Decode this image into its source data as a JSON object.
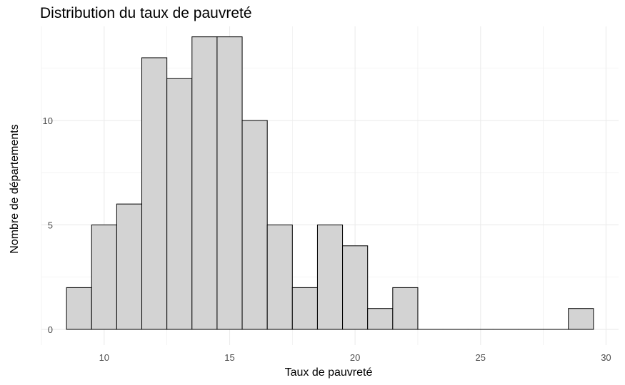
{
  "chart_data": {
    "type": "bar",
    "title": "Distribution du taux de pauvreté",
    "xlabel": "Taux de pauvreté",
    "ylabel": "Nombre de départements",
    "bin_width": 1,
    "bins": [
      {
        "start": 8.5,
        "end": 9.5,
        "count": 2
      },
      {
        "start": 9.5,
        "end": 10.5,
        "count": 5
      },
      {
        "start": 10.5,
        "end": 11.5,
        "count": 6
      },
      {
        "start": 11.5,
        "end": 12.5,
        "count": 13
      },
      {
        "start": 12.5,
        "end": 13.5,
        "count": 12
      },
      {
        "start": 13.5,
        "end": 14.5,
        "count": 14
      },
      {
        "start": 14.5,
        "end": 15.5,
        "count": 14
      },
      {
        "start": 15.5,
        "end": 16.5,
        "count": 10
      },
      {
        "start": 16.5,
        "end": 17.5,
        "count": 5
      },
      {
        "start": 17.5,
        "end": 18.5,
        "count": 2
      },
      {
        "start": 18.5,
        "end": 19.5,
        "count": 5
      },
      {
        "start": 19.5,
        "end": 20.5,
        "count": 4
      },
      {
        "start": 20.5,
        "end": 21.5,
        "count": 1
      },
      {
        "start": 21.5,
        "end": 22.5,
        "count": 2
      },
      {
        "start": 22.5,
        "end": 23.5,
        "count": 0
      },
      {
        "start": 23.5,
        "end": 24.5,
        "count": 0
      },
      {
        "start": 24.5,
        "end": 25.5,
        "count": 0
      },
      {
        "start": 25.5,
        "end": 26.5,
        "count": 0
      },
      {
        "start": 26.5,
        "end": 27.5,
        "count": 0
      },
      {
        "start": 27.5,
        "end": 28.5,
        "count": 0
      },
      {
        "start": 28.5,
        "end": 29.5,
        "count": 1
      }
    ],
    "xlim": [
      7.5,
      30.5
    ],
    "ylim": [
      -0.75,
      14.5
    ],
    "x_ticks": [
      10,
      15,
      20,
      25,
      30
    ],
    "y_ticks": [
      0,
      5,
      10
    ],
    "grid": true,
    "bar_fill": "#d3d3d3",
    "bar_stroke": "#000000",
    "gridline_color": "#ebebeb"
  }
}
